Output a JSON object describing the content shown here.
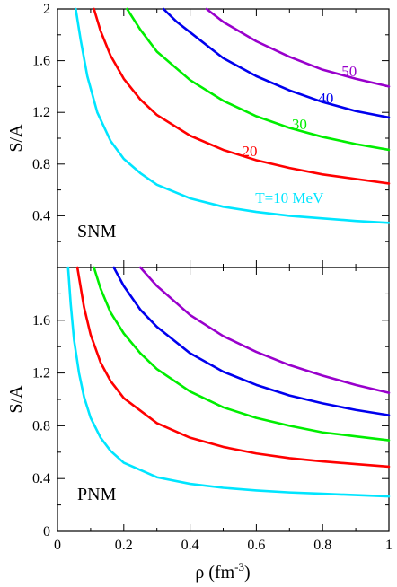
{
  "chart_data": [
    {
      "type": "line",
      "panel_label": "SNM",
      "ylabel": "S/A",
      "xlim": [
        0,
        1
      ],
      "ylim": [
        0,
        2
      ],
      "xticks": [
        "0",
        "0.2",
        "0.4",
        "0.6",
        "0.8",
        "1"
      ],
      "yticks": [
        "0.4",
        "0.8",
        "1.2",
        "1.6",
        "2"
      ],
      "grid": false,
      "series": [
        {
          "name": "T=10 MeV",
          "color": "#00e5ff",
          "label_at": [
            0.7,
            0.5
          ],
          "points": [
            [
              0.055,
              2.0
            ],
            [
              0.07,
              1.76
            ],
            [
              0.09,
              1.48
            ],
            [
              0.12,
              1.2
            ],
            [
              0.16,
              0.98
            ],
            [
              0.2,
              0.84
            ],
            [
              0.25,
              0.73
            ],
            [
              0.3,
              0.64
            ],
            [
              0.4,
              0.535
            ],
            [
              0.5,
              0.47
            ],
            [
              0.6,
              0.43
            ],
            [
              0.7,
              0.4
            ],
            [
              0.8,
              0.38
            ],
            [
              0.9,
              0.36
            ],
            [
              1.0,
              0.345
            ]
          ]
        },
        {
          "name": "20",
          "color": "#ff0000",
          "label_at": [
            0.58,
            0.86
          ],
          "points": [
            [
              0.11,
              2.0
            ],
            [
              0.13,
              1.83
            ],
            [
              0.16,
              1.64
            ],
            [
              0.2,
              1.46
            ],
            [
              0.25,
              1.3
            ],
            [
              0.3,
              1.18
            ],
            [
              0.4,
              1.02
            ],
            [
              0.5,
              0.91
            ],
            [
              0.6,
              0.83
            ],
            [
              0.7,
              0.77
            ],
            [
              0.8,
              0.72
            ],
            [
              0.9,
              0.685
            ],
            [
              1.0,
              0.65
            ]
          ]
        },
        {
          "name": "30",
          "color": "#00ee00",
          "label_at": [
            0.73,
            1.07
          ],
          "points": [
            [
              0.21,
              2.0
            ],
            [
              0.25,
              1.84
            ],
            [
              0.3,
              1.67
            ],
            [
              0.4,
              1.45
            ],
            [
              0.5,
              1.29
            ],
            [
              0.6,
              1.17
            ],
            [
              0.7,
              1.08
            ],
            [
              0.8,
              1.01
            ],
            [
              0.9,
              0.955
            ],
            [
              1.0,
              0.91
            ]
          ]
        },
        {
          "name": "40",
          "color": "#0000ee",
          "label_at": [
            0.81,
            1.27
          ],
          "points": [
            [
              0.32,
              2.0
            ],
            [
              0.36,
              1.9
            ],
            [
              0.4,
              1.82
            ],
            [
              0.5,
              1.62
            ],
            [
              0.6,
              1.48
            ],
            [
              0.7,
              1.37
            ],
            [
              0.8,
              1.28
            ],
            [
              0.9,
              1.21
            ],
            [
              1.0,
              1.16
            ]
          ]
        },
        {
          "name": "50",
          "color": "#9900cc",
          "label_at": [
            0.88,
            1.48
          ],
          "points": [
            [
              0.45,
              2.0
            ],
            [
              0.5,
              1.9
            ],
            [
              0.6,
              1.75
            ],
            [
              0.7,
              1.63
            ],
            [
              0.8,
              1.53
            ],
            [
              0.9,
              1.46
            ],
            [
              1.0,
              1.4
            ]
          ]
        }
      ]
    },
    {
      "type": "line",
      "panel_label": "PNM",
      "xlabel": "ρ (fm",
      "xlabel_exp": "-3",
      "xlabel_close": ")",
      "ylabel": "S/A",
      "xlim": [
        0,
        1
      ],
      "ylim": [
        0,
        2
      ],
      "xticks": [
        "0",
        "0.2",
        "0.4",
        "0.6",
        "0.8",
        "1"
      ],
      "yticks": [
        "0",
        "0.4",
        "0.8",
        "1.2",
        "1.6"
      ],
      "grid": false,
      "series": [
        {
          "color": "#00e5ff",
          "points": [
            [
              0.032,
              2.0
            ],
            [
              0.04,
              1.72
            ],
            [
              0.05,
              1.45
            ],
            [
              0.065,
              1.2
            ],
            [
              0.08,
              1.02
            ],
            [
              0.1,
              0.86
            ],
            [
              0.13,
              0.71
            ],
            [
              0.16,
              0.61
            ],
            [
              0.2,
              0.52
            ],
            [
              0.3,
              0.41
            ],
            [
              0.4,
              0.36
            ],
            [
              0.5,
              0.33
            ],
            [
              0.6,
              0.31
            ],
            [
              0.7,
              0.295
            ],
            [
              0.8,
              0.285
            ],
            [
              0.9,
              0.275
            ],
            [
              1.0,
              0.265
            ]
          ]
        },
        {
          "color": "#ff0000",
          "points": [
            [
              0.06,
              2.0
            ],
            [
              0.08,
              1.7
            ],
            [
              0.1,
              1.49
            ],
            [
              0.13,
              1.28
            ],
            [
              0.16,
              1.14
            ],
            [
              0.2,
              1.01
            ],
            [
              0.3,
              0.82
            ],
            [
              0.4,
              0.71
            ],
            [
              0.5,
              0.64
            ],
            [
              0.6,
              0.59
            ],
            [
              0.7,
              0.555
            ],
            [
              0.8,
              0.53
            ],
            [
              0.9,
              0.51
            ],
            [
              1.0,
              0.49
            ]
          ]
        },
        {
          "color": "#00ee00",
          "points": [
            [
              0.11,
              2.0
            ],
            [
              0.13,
              1.84
            ],
            [
              0.16,
              1.66
            ],
            [
              0.2,
              1.5
            ],
            [
              0.25,
              1.35
            ],
            [
              0.3,
              1.23
            ],
            [
              0.4,
              1.06
            ],
            [
              0.5,
              0.94
            ],
            [
              0.6,
              0.86
            ],
            [
              0.7,
              0.8
            ],
            [
              0.8,
              0.75
            ],
            [
              0.9,
              0.72
            ],
            [
              1.0,
              0.69
            ]
          ]
        },
        {
          "color": "#0000ee",
          "points": [
            [
              0.17,
              2.0
            ],
            [
              0.2,
              1.86
            ],
            [
              0.25,
              1.68
            ],
            [
              0.3,
              1.55
            ],
            [
              0.4,
              1.35
            ],
            [
              0.5,
              1.21
            ],
            [
              0.6,
              1.11
            ],
            [
              0.7,
              1.03
            ],
            [
              0.8,
              0.97
            ],
            [
              0.9,
              0.92
            ],
            [
              1.0,
              0.88
            ]
          ]
        },
        {
          "color": "#9900cc",
          "points": [
            [
              0.25,
              2.0
            ],
            [
              0.3,
              1.86
            ],
            [
              0.4,
              1.64
            ],
            [
              0.5,
              1.48
            ],
            [
              0.6,
              1.36
            ],
            [
              0.7,
              1.26
            ],
            [
              0.8,
              1.18
            ],
            [
              0.9,
              1.11
            ],
            [
              1.0,
              1.05
            ]
          ]
        }
      ]
    }
  ]
}
